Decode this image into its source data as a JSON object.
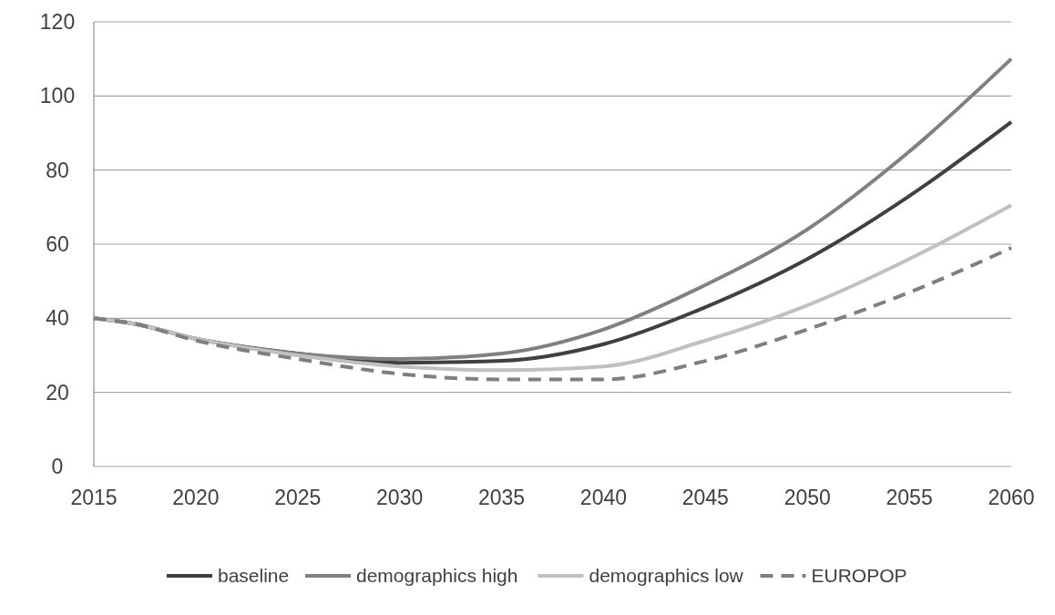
{
  "chart_data": {
    "type": "line",
    "x": [
      2015,
      2017,
      2020,
      2025,
      2030,
      2035,
      2040,
      2045,
      2050,
      2055,
      2060
    ],
    "series": [
      {
        "name": "baseline",
        "color": "#404040",
        "values": [
          40,
          38.5,
          34.5,
          30.5,
          28,
          28.5,
          33,
          43,
          56,
          73,
          93
        ]
      },
      {
        "name": "demographics high",
        "color": "#808080",
        "values": [
          40,
          38.5,
          34.5,
          30.5,
          29,
          30.5,
          37,
          49,
          64,
          85,
          110
        ]
      },
      {
        "name": "demographics low",
        "color": "#c0c0c0",
        "values": [
          40,
          38.5,
          34.5,
          30,
          27,
          26,
          27,
          34,
          43.5,
          56,
          70.5
        ]
      },
      {
        "name": "EUROPOP",
        "color": "#7f7f7f",
        "line_style": "dashed",
        "values": [
          40,
          38.5,
          34,
          29,
          25,
          23.5,
          23.5,
          28.5,
          37,
          47,
          59
        ]
      }
    ],
    "xlim": [
      2015,
      2060
    ],
    "xticks": [
      2015,
      2020,
      2025,
      2030,
      2035,
      2040,
      2045,
      2050,
      2055,
      2060
    ],
    "ylim": [
      0,
      120
    ],
    "yticks": [
      0,
      20,
      40,
      60,
      80,
      100,
      120
    ],
    "grid": "y",
    "legend": "bottom",
    "line_style": "solid"
  }
}
